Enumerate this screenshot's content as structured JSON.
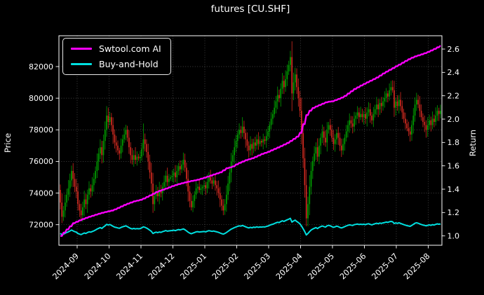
{
  "title": "futures [CU.SHF]",
  "legend": {
    "items": [
      {
        "label": "Swtool.com AI",
        "color": "#ff00ff"
      },
      {
        "label": "Buy-and-Hold",
        "color": "#00e0e0"
      }
    ]
  },
  "axes": {
    "left_label": "Price",
    "right_label": "Return",
    "left_ticks": [
      72000,
      74000,
      76000,
      78000,
      80000,
      82000
    ],
    "right_ticks": [
      1.0,
      1.2,
      1.4,
      1.6,
      1.8,
      2.0,
      2.2,
      2.4,
      2.6
    ],
    "x_ticks": [
      "2024-09",
      "2024-10",
      "2024-11",
      "2024-12",
      "2025-01",
      "2025-02",
      "2025-03",
      "2025-04",
      "2025-05",
      "2025-06",
      "2025-07",
      "2025-08"
    ]
  },
  "chart_data": {
    "type": "candlestick+line",
    "title": "futures [CU.SHF]",
    "xlabel": "",
    "ylabel_left": "Price",
    "ylabel_right": "Return",
    "ylim_price": [
      70700,
      83950
    ],
    "ylim_return": [
      0.92,
      2.714
    ],
    "grid": "dotted",
    "legend_position": "upper-left",
    "candle_colors": {
      "up": "#00a000",
      "down": "#d42a20"
    },
    "first_open": 74200,
    "closes": [
      73400,
      72500,
      72900,
      73400,
      73900,
      74300,
      74800,
      75400,
      74900,
      74400,
      74100,
      73300,
      72900,
      72600,
      73100,
      73600,
      73300,
      73900,
      74300,
      74100,
      74500,
      74900,
      75400,
      76000,
      76500,
      76900,
      76400,
      77300,
      78000,
      78900,
      78500,
      78800,
      78300,
      77700,
      77200,
      77000,
      76700,
      76500,
      77000,
      77400,
      77700,
      78000,
      77500,
      76900,
      76400,
      76100,
      76400,
      76100,
      76300,
      76200,
      76300,
      76800,
      77400,
      77100,
      76600,
      76000,
      75300,
      74600,
      73300,
      73800,
      74100,
      73800,
      74200,
      74000,
      74400,
      74700,
      75100,
      74700,
      74900,
      75000,
      75100,
      75300,
      75000,
      75400,
      75700,
      75500,
      75800,
      76100,
      75600,
      74900,
      74100,
      73500,
      73100,
      73500,
      73900,
      74300,
      74400,
      74200,
      74300,
      74400,
      74500,
      74300,
      74700,
      75000,
      74800,
      74600,
      74800,
      74500,
      74300,
      74000,
      73600,
      73200,
      72900,
      73300,
      73900,
      74600,
      75300,
      76000,
      76400,
      76900,
      77300,
      77700,
      78000,
      77800,
      78200,
      77800,
      77400,
      77000,
      76700,
      77100,
      76800,
      77200,
      77000,
      77400,
      77100,
      77300,
      77200,
      77400,
      77300,
      77600,
      77900,
      78300,
      78700,
      79000,
      79400,
      79800,
      80200,
      80000,
      80600,
      81100,
      80700,
      81200,
      81700,
      82100,
      82600,
      80300,
      81000,
      81500,
      80700,
      80000,
      79200,
      77800,
      76200,
      74500,
      72400,
      73300,
      74400,
      75400,
      76000,
      76500,
      76900,
      76300,
      77000,
      77500,
      77900,
      77500,
      77200,
      78000,
      78300,
      78000,
      77500,
      77100,
      77400,
      77800,
      77500,
      77000,
      76700,
      77100,
      77500,
      77900,
      78300,
      78600,
      78400,
      78200,
      78700,
      78900,
      79100,
      78800,
      79000,
      78800,
      79000,
      78700,
      79100,
      79300,
      78900,
      78600,
      79000,
      79300,
      79600,
      79300,
      79700,
      79500,
      79800,
      80000,
      80300,
      80100,
      80500,
      80700,
      80500,
      79400,
      79800,
      79500,
      79900,
      79500,
      79100,
      78700,
      78400,
      78100,
      77900,
      77700,
      78300,
      78900,
      79600,
      79900,
      79600,
      79200,
      78800,
      78500,
      78300,
      78000,
      78300,
      78600,
      78300,
      78700,
      78500,
      78900,
      79200,
      79000,
      79200
    ],
    "wick_overrides": {
      "high": {
        "29": 79500,
        "30": 79400,
        "52": 78400,
        "114": 78800,
        "144": 83000,
        "145": 83600,
        "207": 81100,
        "209": 81100,
        "222": 80050
      },
      "low": {
        "1": 72100,
        "13": 72300,
        "82": 72900,
        "102": 72600,
        "154": 71900,
        "229": 77500
      }
    },
    "series": [
      {
        "name": "Swtool.com AI",
        "axis": "return",
        "color": "#ff00ff",
        "points": [
          [
            0,
            1.0
          ],
          [
            0.015,
            1.05
          ],
          [
            0.033,
            1.108
          ],
          [
            0.052,
            1.136
          ],
          [
            0.07,
            1.158
          ],
          [
            0.089,
            1.178
          ],
          [
            0.107,
            1.196
          ],
          [
            0.138,
            1.22
          ],
          [
            0.17,
            1.268
          ],
          [
            0.192,
            1.295
          ],
          [
            0.212,
            1.31
          ],
          [
            0.234,
            1.345
          ],
          [
            0.255,
            1.38
          ],
          [
            0.277,
            1.405
          ],
          [
            0.297,
            1.43
          ],
          [
            0.317,
            1.45
          ],
          [
            0.34,
            1.468
          ],
          [
            0.36,
            1.48
          ],
          [
            0.38,
            1.5
          ],
          [
            0.402,
            1.525
          ],
          [
            0.423,
            1.548
          ],
          [
            0.435,
            1.578
          ],
          [
            0.452,
            1.592
          ],
          [
            0.465,
            1.618
          ],
          [
            0.487,
            1.648
          ],
          [
            0.507,
            1.668
          ],
          [
            0.528,
            1.7
          ],
          [
            0.546,
            1.72
          ],
          [
            0.565,
            1.748
          ],
          [
            0.579,
            1.768
          ],
          [
            0.598,
            1.798
          ],
          [
            0.613,
            1.83
          ],
          [
            0.622,
            1.85
          ],
          [
            0.629,
            1.872
          ],
          [
            0.637,
            1.94
          ],
          [
            0.646,
            2.03
          ],
          [
            0.659,
            2.088
          ],
          [
            0.673,
            2.11
          ],
          [
            0.686,
            2.128
          ],
          [
            0.701,
            2.148
          ],
          [
            0.714,
            2.152
          ],
          [
            0.729,
            2.17
          ],
          [
            0.745,
            2.192
          ],
          [
            0.76,
            2.228
          ],
          [
            0.773,
            2.258
          ],
          [
            0.786,
            2.28
          ],
          [
            0.797,
            2.3
          ],
          [
            0.816,
            2.33
          ],
          [
            0.834,
            2.36
          ],
          [
            0.852,
            2.398
          ],
          [
            0.869,
            2.428
          ],
          [
            0.88,
            2.448
          ],
          [
            0.897,
            2.478
          ],
          [
            0.911,
            2.505
          ],
          [
            0.93,
            2.535
          ],
          [
            0.945,
            2.55
          ],
          [
            0.963,
            2.57
          ],
          [
            0.976,
            2.59
          ],
          [
            0.989,
            2.61
          ],
          [
            1,
            2.63
          ]
        ]
      },
      {
        "name": "Buy-and-Hold",
        "axis": "return",
        "color": "#00e0e0",
        "derived_from": "closes",
        "base_price": 71800
      }
    ]
  }
}
